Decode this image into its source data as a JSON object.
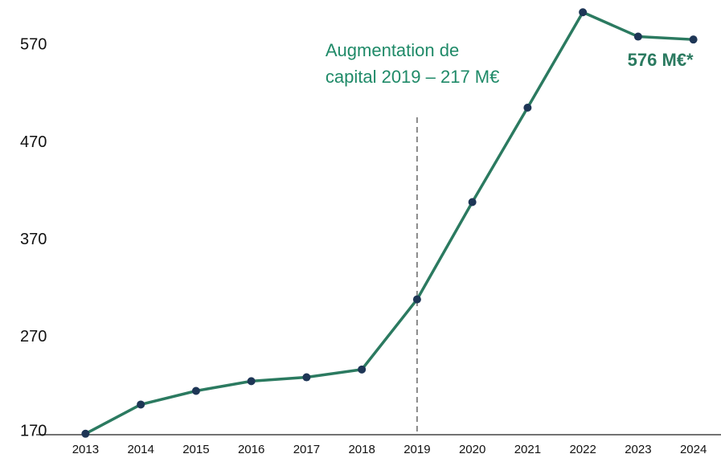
{
  "chart_data": {
    "type": "line",
    "categories": [
      "2013",
      "2014",
      "2015",
      "2016",
      "2017",
      "2018",
      "2019",
      "2020",
      "2021",
      "2022",
      "2023",
      "2024"
    ],
    "series": [
      {
        "color": "#2b7a60",
        "marker_color": "#1e3656",
        "values": [
          171,
          201,
          215,
          225,
          229,
          237,
          309,
          409,
          506,
          604,
          579,
          576
        ],
        "value_labels": [
          null,
          null,
          null,
          null,
          null,
          null,
          null,
          null,
          null,
          null,
          null,
          "576 M€*"
        ]
      }
    ],
    "ylim": [
      170,
      610
    ],
    "yticks": [
      170,
      270,
      370,
      470,
      570
    ],
    "grid": false,
    "annotations": [
      {
        "category": "2019",
        "lines": [
          "Augmentation de",
          "capital 2019 – 217 M€"
        ],
        "color": "#1f8a68"
      }
    ]
  }
}
